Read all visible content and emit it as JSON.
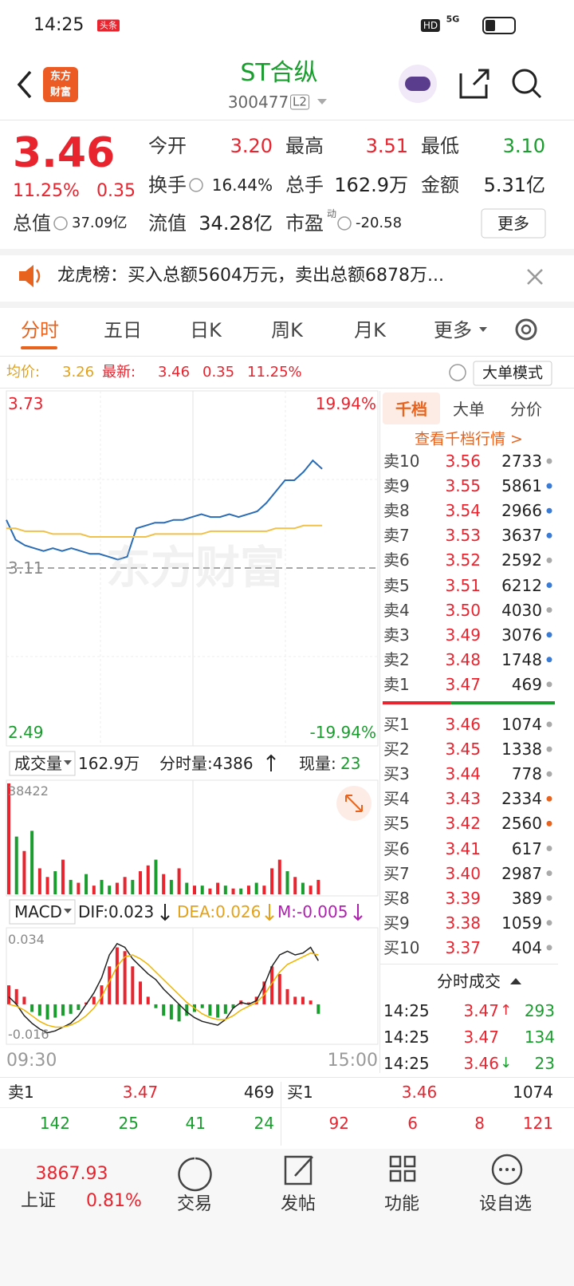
{
  "status_bar": {
    "time": "14:25",
    "badge": "头条",
    "hd": "HD",
    "network": "5G"
  },
  "header": {
    "logo": [
      "东方",
      "财富"
    ],
    "title": "ST合纵",
    "code": "300477",
    "level": "L2"
  },
  "quote": {
    "price": "3.46",
    "change_pct": "11.25%",
    "change": "0.35",
    "fields": [
      {
        "label": "今开",
        "value": "3.20",
        "color": "#e8242f"
      },
      {
        "label": "最高",
        "value": "3.51",
        "color": "#e8242f"
      },
      {
        "label": "最低",
        "value": "3.10",
        "color": "#1a9c2e"
      },
      {
        "label": "换手",
        "value": "16.44%",
        "color": "#222222",
        "info": true
      },
      {
        "label": "总手",
        "value": "162.9万",
        "color": "#222222"
      },
      {
        "label": "金额",
        "value": "5.31亿",
        "color": "#222222"
      },
      {
        "label": "总值",
        "value": "37.09亿",
        "color": "#222222",
        "info": true
      },
      {
        "label": "流值",
        "value": "34.28亿",
        "color": "#222222"
      },
      {
        "label": "市盈",
        "sup": "动",
        "value": "-20.58",
        "color": "#222222",
        "info": true
      }
    ],
    "more": "更多"
  },
  "notice": "龙虎榜：买入总额5604万元，卖出总额6878万...",
  "tabs": {
    "items": [
      "分时",
      "五日",
      "日K",
      "周K",
      "月K",
      "更多"
    ],
    "active": 0
  },
  "info_bar": {
    "avg_label": "均价:",
    "avg": "3.26",
    "latest_label": "最新:",
    "latest": "3.46",
    "change": "0.35",
    "change_pct": "11.25%",
    "mode": "大单模式"
  },
  "watermark": "东方财富",
  "chart_data": [
    {
      "type": "line",
      "xlim": [
        0,
        240
      ],
      "ylim": [
        2.49,
        3.73
      ],
      "yticks": [
        2.49,
        3.11,
        3.73
      ],
      "y2lim": [
        -19.94,
        19.94
      ],
      "y2ticks": [
        {
          "value": -19.94,
          "label": "-19.94%"
        },
        {
          "value": 19.94,
          "label": "19.94%"
        }
      ],
      "grid": true,
      "x": [
        0,
        6,
        12,
        18,
        24,
        30,
        36,
        42,
        48,
        54,
        60,
        66,
        72,
        78,
        84,
        90,
        96,
        102,
        108,
        114,
        120,
        126,
        132,
        138,
        144,
        150,
        156,
        162,
        168,
        174,
        180,
        186,
        192,
        198,
        204
      ],
      "series": [
        {
          "color": "#2a6cb5",
          "values": [
            3.28,
            3.21,
            3.19,
            3.18,
            3.17,
            3.18,
            3.17,
            3.18,
            3.17,
            3.16,
            3.16,
            3.15,
            3.14,
            3.15,
            3.25,
            3.26,
            3.27,
            3.27,
            3.28,
            3.28,
            3.29,
            3.3,
            3.29,
            3.29,
            3.3,
            3.29,
            3.3,
            3.31,
            3.34,
            3.38,
            3.42,
            3.42,
            3.45,
            3.49,
            3.46
          ]
        },
        {
          "color": "#f0c14b",
          "values": [
            3.25,
            3.25,
            3.24,
            3.24,
            3.24,
            3.23,
            3.23,
            3.23,
            3.23,
            3.22,
            3.22,
            3.22,
            3.22,
            3.22,
            3.22,
            3.22,
            3.23,
            3.23,
            3.23,
            3.23,
            3.23,
            3.23,
            3.24,
            3.24,
            3.24,
            3.24,
            3.24,
            3.24,
            3.24,
            3.25,
            3.25,
            3.25,
            3.26,
            3.26,
            3.26
          ]
        }
      ]
    },
    {
      "type": "bar",
      "xlim": [
        0,
        240
      ],
      "ylim": [
        0,
        38422
      ],
      "yticks": [
        38422
      ],
      "up_color": "#e8242f",
      "down_color": "#1a9c2e",
      "x": [
        0,
        5,
        10,
        15,
        20,
        25,
        30,
        35,
        40,
        45,
        50,
        55,
        60,
        65,
        70,
        75,
        80,
        85,
        90,
        95,
        100,
        105,
        110,
        115,
        120,
        125,
        130,
        135,
        140,
        145,
        150,
        155,
        160,
        165,
        170,
        175,
        180,
        185,
        190,
        195,
        200
      ],
      "values": [
        38422,
        20000,
        15000,
        22000,
        9000,
        6000,
        8000,
        12000,
        5000,
        4000,
        7000,
        3000,
        5000,
        3000,
        4000,
        6000,
        5000,
        8000,
        10000,
        12000,
        7000,
        5000,
        9000,
        4000,
        3000,
        3000,
        2000,
        4000,
        3000,
        2000,
        2000,
        3000,
        4000,
        3000,
        9000,
        12000,
        8000,
        6000,
        4000,
        3000,
        5000
      ],
      "up": [
        true,
        false,
        true,
        false,
        true,
        true,
        false,
        true,
        false,
        true,
        false,
        true,
        false,
        false,
        true,
        true,
        false,
        true,
        true,
        false,
        true,
        false,
        true,
        false,
        true,
        false,
        true,
        true,
        false,
        true,
        false,
        true,
        false,
        true,
        true,
        true,
        false,
        true,
        false,
        true,
        true
      ]
    },
    {
      "type": "bar",
      "xlim": [
        0,
        240
      ],
      "ylim": [
        -0.016,
        0.034
      ],
      "yticks": [
        -0.016,
        0.034
      ],
      "xticks": [
        {
          "value": 0,
          "label": "09:30"
        },
        {
          "value": 240,
          "label": "15:00"
        }
      ],
      "up_color": "#e8242f",
      "down_color": "#1a9c2e",
      "x": [
        0,
        5,
        10,
        15,
        20,
        25,
        30,
        35,
        40,
        45,
        50,
        55,
        60,
        65,
        70,
        75,
        80,
        85,
        90,
        95,
        100,
        105,
        110,
        115,
        120,
        125,
        130,
        135,
        140,
        145,
        150,
        155,
        160,
        165,
        170,
        175,
        180,
        185,
        190,
        195,
        200
      ],
      "values": [
        0.01,
        0.008,
        0.004,
        -0.004,
        -0.006,
        -0.008,
        -0.007,
        -0.006,
        -0.005,
        -0.003,
        0.001,
        0.004,
        0.01,
        0.02,
        0.03,
        0.028,
        0.02,
        0.012,
        0.004,
        -0.002,
        -0.006,
        -0.008,
        -0.009,
        -0.006,
        -0.004,
        -0.002,
        -0.006,
        -0.007,
        -0.005,
        -0.002,
        0.002,
        0.001,
        0.004,
        0.012,
        0.02,
        0.016,
        0.008,
        0.004,
        0.004,
        0.002,
        -0.005
      ],
      "lines": [
        {
          "color": "#222222",
          "values": [
            0.004,
            0,
            -0.006,
            -0.01,
            -0.013,
            -0.015,
            -0.014,
            -0.012,
            -0.01,
            -0.006,
            0,
            0.006,
            0.014,
            0.026,
            0.032,
            0.03,
            0.024,
            0.02,
            0.016,
            0.013,
            0.008,
            0.004,
            0,
            -0.004,
            -0.007,
            -0.009,
            -0.01,
            -0.011,
            -0.008,
            -0.002,
            0.001,
            0,
            0.002,
            0.01,
            0.02,
            0.026,
            0.028,
            0.026,
            0.027,
            0.03,
            0.023
          ]
        },
        {
          "color": "#f0b400",
          "values": [
            0,
            -0.001,
            -0.003,
            -0.006,
            -0.009,
            -0.011,
            -0.012,
            -0.012,
            -0.011,
            -0.009,
            -0.006,
            -0.002,
            0.004,
            0.012,
            0.02,
            0.025,
            0.026,
            0.024,
            0.021,
            0.017,
            0.013,
            0.009,
            0.005,
            0.001,
            -0.002,
            -0.005,
            -0.007,
            -0.008,
            -0.008,
            -0.006,
            -0.003,
            -0.001,
            0.001,
            0.005,
            0.011,
            0.017,
            0.021,
            0.023,
            0.025,
            0.027,
            0.026
          ]
        }
      ]
    }
  ],
  "volume_header": {
    "label": "成交量",
    "total": "162.9万",
    "minute": "分时量:4386",
    "current_label": "现量:",
    "current": "23"
  },
  "macd_header": {
    "label": "MACD",
    "dif": "DIF:0.023",
    "dea": "DEA:0.026",
    "m": "M:-0.005"
  },
  "order_book": {
    "tabs": [
      "千档",
      "大单",
      "分价"
    ],
    "active": 0,
    "link": "查看千档行情 >",
    "asks": [
      {
        "label": "卖10",
        "price": "3.56",
        "volume": "2733",
        "dot": "#aaaaaa"
      },
      {
        "label": "卖9",
        "price": "3.55",
        "volume": "5861",
        "dot": "#3a7bd5"
      },
      {
        "label": "卖8",
        "price": "3.54",
        "volume": "2966",
        "dot": "#3a7bd5"
      },
      {
        "label": "卖7",
        "price": "3.53",
        "volume": "3637",
        "dot": "#3a7bd5"
      },
      {
        "label": "卖6",
        "price": "3.52",
        "volume": "2592",
        "dot": "#aaaaaa"
      },
      {
        "label": "卖5",
        "price": "3.51",
        "volume": "6212",
        "dot": "#3a7bd5"
      },
      {
        "label": "卖4",
        "price": "3.50",
        "volume": "4030",
        "dot": "#aaaaaa"
      },
      {
        "label": "卖3",
        "price": "3.49",
        "volume": "3076",
        "dot": "#3a7bd5"
      },
      {
        "label": "卖2",
        "price": "3.48",
        "volume": "1748",
        "dot": "#3a7bd5"
      },
      {
        "label": "卖1",
        "price": "3.47",
        "volume": "469",
        "dot": "#aaaaaa"
      }
    ],
    "bids": [
      {
        "label": "买1",
        "price": "3.46",
        "volume": "1074",
        "dot": "#aaaaaa"
      },
      {
        "label": "买2",
        "price": "3.45",
        "volume": "1338",
        "dot": "#aaaaaa"
      },
      {
        "label": "买3",
        "price": "3.44",
        "volume": "778",
        "dot": "#aaaaaa"
      },
      {
        "label": "买4",
        "price": "3.43",
        "volume": "2334",
        "dot": "#e8641e"
      },
      {
        "label": "买5",
        "price": "3.42",
        "volume": "2560",
        "dot": "#e8641e"
      },
      {
        "label": "买6",
        "price": "3.41",
        "volume": "617",
        "dot": "#aaaaaa"
      },
      {
        "label": "买7",
        "price": "3.40",
        "volume": "2987",
        "dot": "#aaaaaa"
      },
      {
        "label": "买8",
        "price": "3.39",
        "volume": "389",
        "dot": "#aaaaaa"
      },
      {
        "label": "买9",
        "price": "3.38",
        "volume": "1059",
        "dot": "#aaaaaa"
      },
      {
        "label": "买10",
        "price": "3.37",
        "volume": "404",
        "dot": "#aaaaaa"
      }
    ]
  },
  "trades": {
    "title": "分时成交",
    "rows": [
      {
        "time": "14:25",
        "price": "3.47",
        "arrow": "↑",
        "volume": "293"
      },
      {
        "time": "14:25",
        "price": "3.47",
        "volume": "134"
      },
      {
        "time": "14:25",
        "price": "3.46",
        "arrow": "↓",
        "volume": "23"
      }
    ]
  },
  "depth_bar": {
    "ask": {
      "label": "卖1",
      "price": "3.47",
      "volume": "469",
      "orders": [
        "142",
        "25",
        "41",
        "24"
      ]
    },
    "bid": {
      "label": "买1",
      "price": "3.46",
      "volume": "1074",
      "orders": [
        "92",
        "6",
        "8",
        "121"
      ]
    }
  },
  "footer": {
    "index_value": "3867.93",
    "index_name": "上证",
    "index_change": "0.81%",
    "items": [
      "交易",
      "发帖",
      "功能",
      "设自选"
    ]
  }
}
